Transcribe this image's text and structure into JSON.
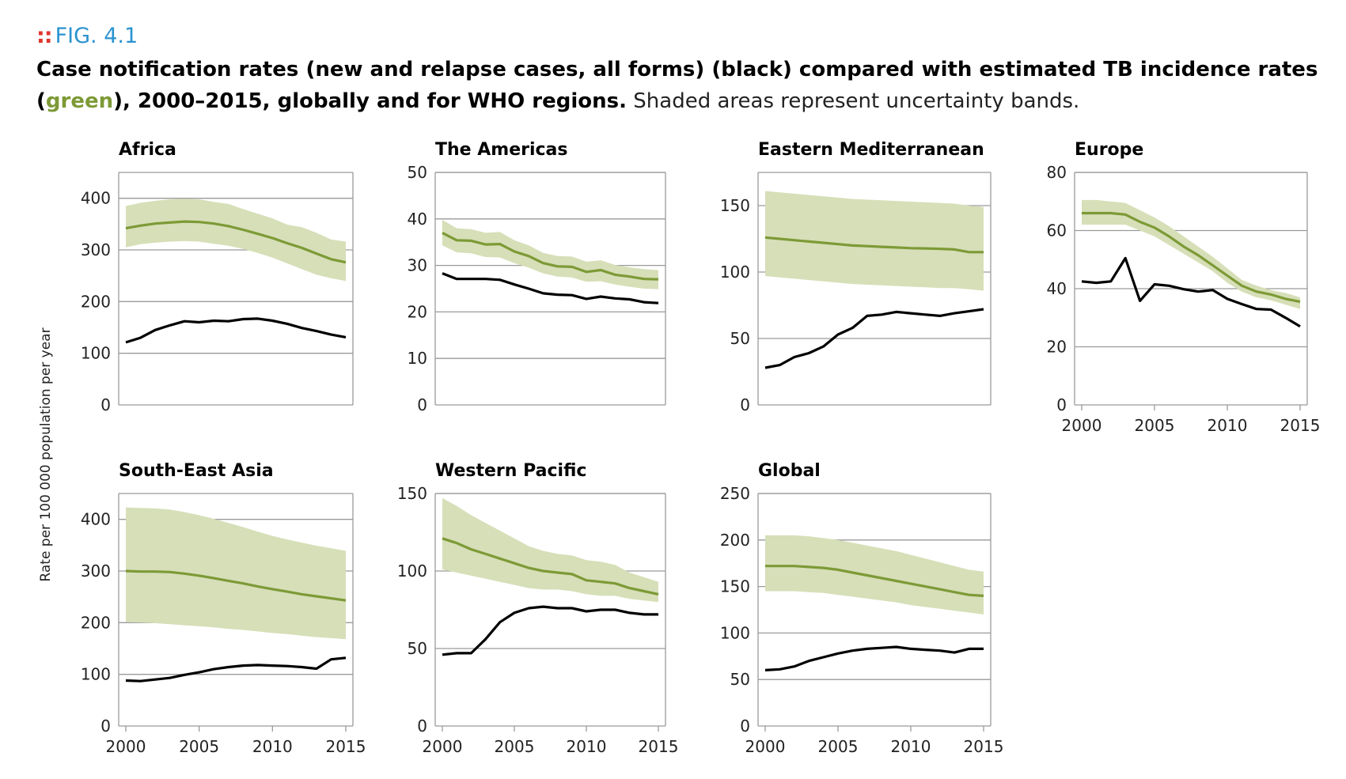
{
  "figure": {
    "label_marker": "::",
    "label": "FIG. 4.1",
    "caption_part1": "Case notification rates (new and relapse cases, all forms) (black) compared with estimated TB incidence rates (",
    "caption_green": "green",
    "caption_part2": "), 2000–2015, globally and for WHO regions.",
    "caption_note": " Shaded areas represent uncertainty bands.",
    "y_axis_label": "Rate per 100 000 population per year"
  },
  "colors": {
    "incidence_line": "#7d9a36",
    "uncertainty_band": "#d6dfb8",
    "notification_line": "#000000",
    "grid": "#9a9a9a",
    "frame": "#9a9a9a"
  },
  "chart_data": [
    {
      "type": "line",
      "title": "Africa",
      "ylim": [
        0,
        450
      ],
      "yticks": [
        0,
        100,
        200,
        300,
        400
      ],
      "show_xaxis": false,
      "x": [
        2000,
        2001,
        2002,
        2003,
        2004,
        2005,
        2006,
        2007,
        2008,
        2009,
        2010,
        2011,
        2012,
        2013,
        2014,
        2015
      ],
      "series": [
        {
          "role": "incidence",
          "values": [
            342,
            347,
            351,
            353,
            355,
            354,
            351,
            346,
            339,
            331,
            323,
            313,
            304,
            293,
            282,
            276
          ]
        },
        {
          "role": "incidence_low",
          "values": [
            305,
            311,
            314,
            316,
            317,
            316,
            312,
            308,
            302,
            294,
            285,
            274,
            263,
            252,
            245,
            240
          ]
        },
        {
          "role": "incidence_high",
          "values": [
            385,
            391,
            395,
            398,
            399,
            398,
            393,
            389,
            379,
            370,
            361,
            349,
            344,
            333,
            320,
            316
          ]
        },
        {
          "role": "notification",
          "values": [
            121,
            130,
            145,
            154,
            162,
            160,
            163,
            162,
            166,
            167,
            163,
            157,
            149,
            143,
            136,
            131
          ]
        }
      ]
    },
    {
      "type": "line",
      "title": "The Americas",
      "ylim": [
        0,
        50
      ],
      "yticks": [
        0,
        10,
        20,
        30,
        40,
        50
      ],
      "show_xaxis": false,
      "x": [
        2000,
        2001,
        2002,
        2003,
        2004,
        2005,
        2006,
        2007,
        2008,
        2009,
        2010,
        2011,
        2012,
        2013,
        2014,
        2015
      ],
      "series": [
        {
          "role": "incidence",
          "values": [
            37,
            35.4,
            35.3,
            34.5,
            34.6,
            33,
            32,
            30.5,
            29.8,
            29.7,
            28.6,
            29,
            28,
            27.6,
            27.1,
            27
          ]
        },
        {
          "role": "incidence_low",
          "values": [
            34.3,
            32.8,
            32.6,
            31.8,
            31.7,
            30.5,
            29.5,
            28.3,
            27.6,
            27.4,
            26.5,
            26.6,
            25.9,
            25.4,
            25,
            24.9
          ]
        },
        {
          "role": "incidence_high",
          "values": [
            39.8,
            38,
            37.8,
            37,
            37.2,
            35.4,
            34.3,
            32.7,
            32,
            31.9,
            30.8,
            31.1,
            30.1,
            29.6,
            29.2,
            29
          ]
        },
        {
          "role": "notification",
          "values": [
            28.3,
            27.1,
            27.1,
            27.1,
            26.9,
            25.9,
            25,
            24,
            23.7,
            23.6,
            22.8,
            23.3,
            22.9,
            22.7,
            22.1,
            21.9
          ]
        }
      ]
    },
    {
      "type": "line",
      "title": "Eastern Mediterranean",
      "ylim": [
        0,
        175
      ],
      "yticks": [
        0,
        50,
        100,
        150
      ],
      "show_xaxis": false,
      "x": [
        2000,
        2001,
        2002,
        2003,
        2004,
        2005,
        2006,
        2007,
        2008,
        2009,
        2010,
        2011,
        2012,
        2013,
        2014,
        2015
      ],
      "series": [
        {
          "role": "incidence",
          "values": [
            126,
            125,
            124,
            123,
            122,
            121,
            120,
            119.5,
            119,
            118.5,
            118,
            117.8,
            117.5,
            117,
            115,
            115
          ]
        },
        {
          "role": "incidence_low",
          "values": [
            97,
            96,
            95,
            94,
            93,
            92,
            91,
            90.5,
            90,
            89.5,
            89,
            88.5,
            88,
            88,
            87,
            86
          ]
        },
        {
          "role": "incidence_high",
          "values": [
            161,
            160,
            159,
            158,
            157,
            156,
            155,
            154.5,
            154,
            153.5,
            153,
            152.5,
            152,
            151.5,
            150,
            149
          ]
        },
        {
          "role": "notification",
          "values": [
            28,
            30,
            36,
            39,
            44,
            53,
            58,
            67,
            68,
            70,
            69,
            68,
            67,
            69,
            70.5,
            72
          ]
        }
      ]
    },
    {
      "type": "line",
      "title": "Europe",
      "ylim": [
        0,
        80
      ],
      "yticks": [
        0,
        20,
        40,
        60,
        80
      ],
      "xticks": [
        2000,
        2005,
        2010,
        2015
      ],
      "show_xaxis": true,
      "x": [
        2000,
        2001,
        2002,
        2003,
        2004,
        2005,
        2006,
        2007,
        2008,
        2009,
        2010,
        2011,
        2012,
        2013,
        2014,
        2015
      ],
      "series": [
        {
          "role": "incidence",
          "values": [
            66,
            66,
            66,
            65.5,
            63,
            61,
            58,
            54.5,
            51.5,
            48,
            44.5,
            41,
            39,
            38,
            36.5,
            35.5
          ]
        },
        {
          "role": "incidence_low",
          "values": [
            62,
            62,
            62,
            62,
            60,
            58,
            55,
            52,
            49,
            46,
            42,
            39,
            37,
            36,
            34.5,
            33
          ]
        },
        {
          "role": "incidence_high",
          "values": [
            70.5,
            70.5,
            70,
            69.5,
            67,
            64.5,
            61.5,
            58,
            54.5,
            51,
            47,
            43,
            41,
            39.5,
            38.5,
            37
          ]
        },
        {
          "role": "notification",
          "values": [
            42.5,
            42,
            42.5,
            50.5,
            35.8,
            41.5,
            41,
            39.8,
            39,
            39.5,
            36.5,
            34.7,
            33,
            32.8,
            30,
            27
          ]
        }
      ]
    },
    {
      "type": "line",
      "title": "South-East Asia",
      "ylim": [
        0,
        450
      ],
      "yticks": [
        0,
        100,
        200,
        300,
        400
      ],
      "xticks": [
        2000,
        2005,
        2010,
        2015
      ],
      "show_xaxis": true,
      "x": [
        2000,
        2001,
        2002,
        2003,
        2004,
        2005,
        2006,
        2007,
        2008,
        2009,
        2010,
        2011,
        2012,
        2013,
        2014,
        2015
      ],
      "series": [
        {
          "role": "incidence",
          "values": [
            300,
            299,
            299,
            298,
            295,
            291,
            286,
            281,
            276,
            270,
            265,
            260,
            255,
            251,
            247,
            243
          ]
        },
        {
          "role": "incidence_low",
          "values": [
            201,
            200,
            199,
            197,
            195,
            193,
            191,
            188,
            186,
            183,
            180,
            178,
            175,
            172,
            170,
            168
          ]
        },
        {
          "role": "incidence_high",
          "values": [
            423,
            422,
            421,
            419,
            414,
            408,
            401,
            393,
            385,
            376,
            368,
            361,
            355,
            349,
            344,
            339
          ]
        },
        {
          "role": "notification",
          "values": [
            88,
            87,
            90,
            93,
            99,
            104,
            110,
            114,
            117,
            118,
            117,
            116,
            114,
            111,
            129,
            132
          ]
        }
      ]
    },
    {
      "type": "line",
      "title": "Western Pacific",
      "ylim": [
        0,
        150
      ],
      "yticks": [
        0,
        50,
        100,
        150
      ],
      "xticks": [
        2000,
        2005,
        2010,
        2015
      ],
      "show_xaxis": true,
      "x": [
        2000,
        2001,
        2002,
        2003,
        2004,
        2005,
        2006,
        2007,
        2008,
        2009,
        2010,
        2011,
        2012,
        2013,
        2014,
        2015
      ],
      "series": [
        {
          "role": "incidence",
          "values": [
            121,
            118,
            114,
            111,
            108,
            105,
            102,
            100,
            99,
            98,
            94,
            93,
            92,
            89,
            87,
            85
          ]
        },
        {
          "role": "incidence_low",
          "values": [
            101,
            99,
            97,
            95,
            93,
            91,
            89,
            88,
            88,
            87,
            85,
            84,
            84,
            82,
            81,
            80
          ]
        },
        {
          "role": "incidence_high",
          "values": [
            147,
            142,
            136,
            131,
            126,
            121,
            116,
            113,
            111,
            110,
            107,
            106,
            104,
            99,
            96,
            93
          ]
        },
        {
          "role": "notification",
          "values": [
            46,
            47,
            47,
            56,
            67,
            73,
            76,
            77,
            76,
            76,
            74,
            75,
            75,
            73,
            72,
            72
          ]
        }
      ]
    },
    {
      "type": "line",
      "title": "Global",
      "ylim": [
        0,
        250
      ],
      "yticks": [
        0,
        50,
        100,
        150,
        200,
        250
      ],
      "xticks": [
        2000,
        2005,
        2010,
        2015
      ],
      "show_xaxis": true,
      "x": [
        2000,
        2001,
        2002,
        2003,
        2004,
        2005,
        2006,
        2007,
        2008,
        2009,
        2010,
        2011,
        2012,
        2013,
        2014,
        2015
      ],
      "series": [
        {
          "role": "incidence",
          "values": [
            172,
            172,
            172,
            171,
            170,
            168,
            165,
            162,
            159,
            156,
            153,
            150,
            147,
            144,
            141,
            140
          ]
        },
        {
          "role": "incidence_low",
          "values": [
            145,
            145,
            145,
            144,
            143,
            141,
            139,
            137,
            135,
            133,
            130,
            128,
            126,
            124,
            122,
            120
          ]
        },
        {
          "role": "incidence_high",
          "values": [
            205,
            205,
            205,
            204,
            202,
            200,
            197,
            194,
            191,
            188,
            184,
            180,
            176,
            172,
            168,
            166
          ]
        },
        {
          "role": "notification",
          "values": [
            60,
            61,
            64,
            70,
            74,
            78,
            81,
            83,
            84,
            85,
            83,
            82,
            81,
            79,
            83,
            83
          ]
        }
      ]
    }
  ]
}
